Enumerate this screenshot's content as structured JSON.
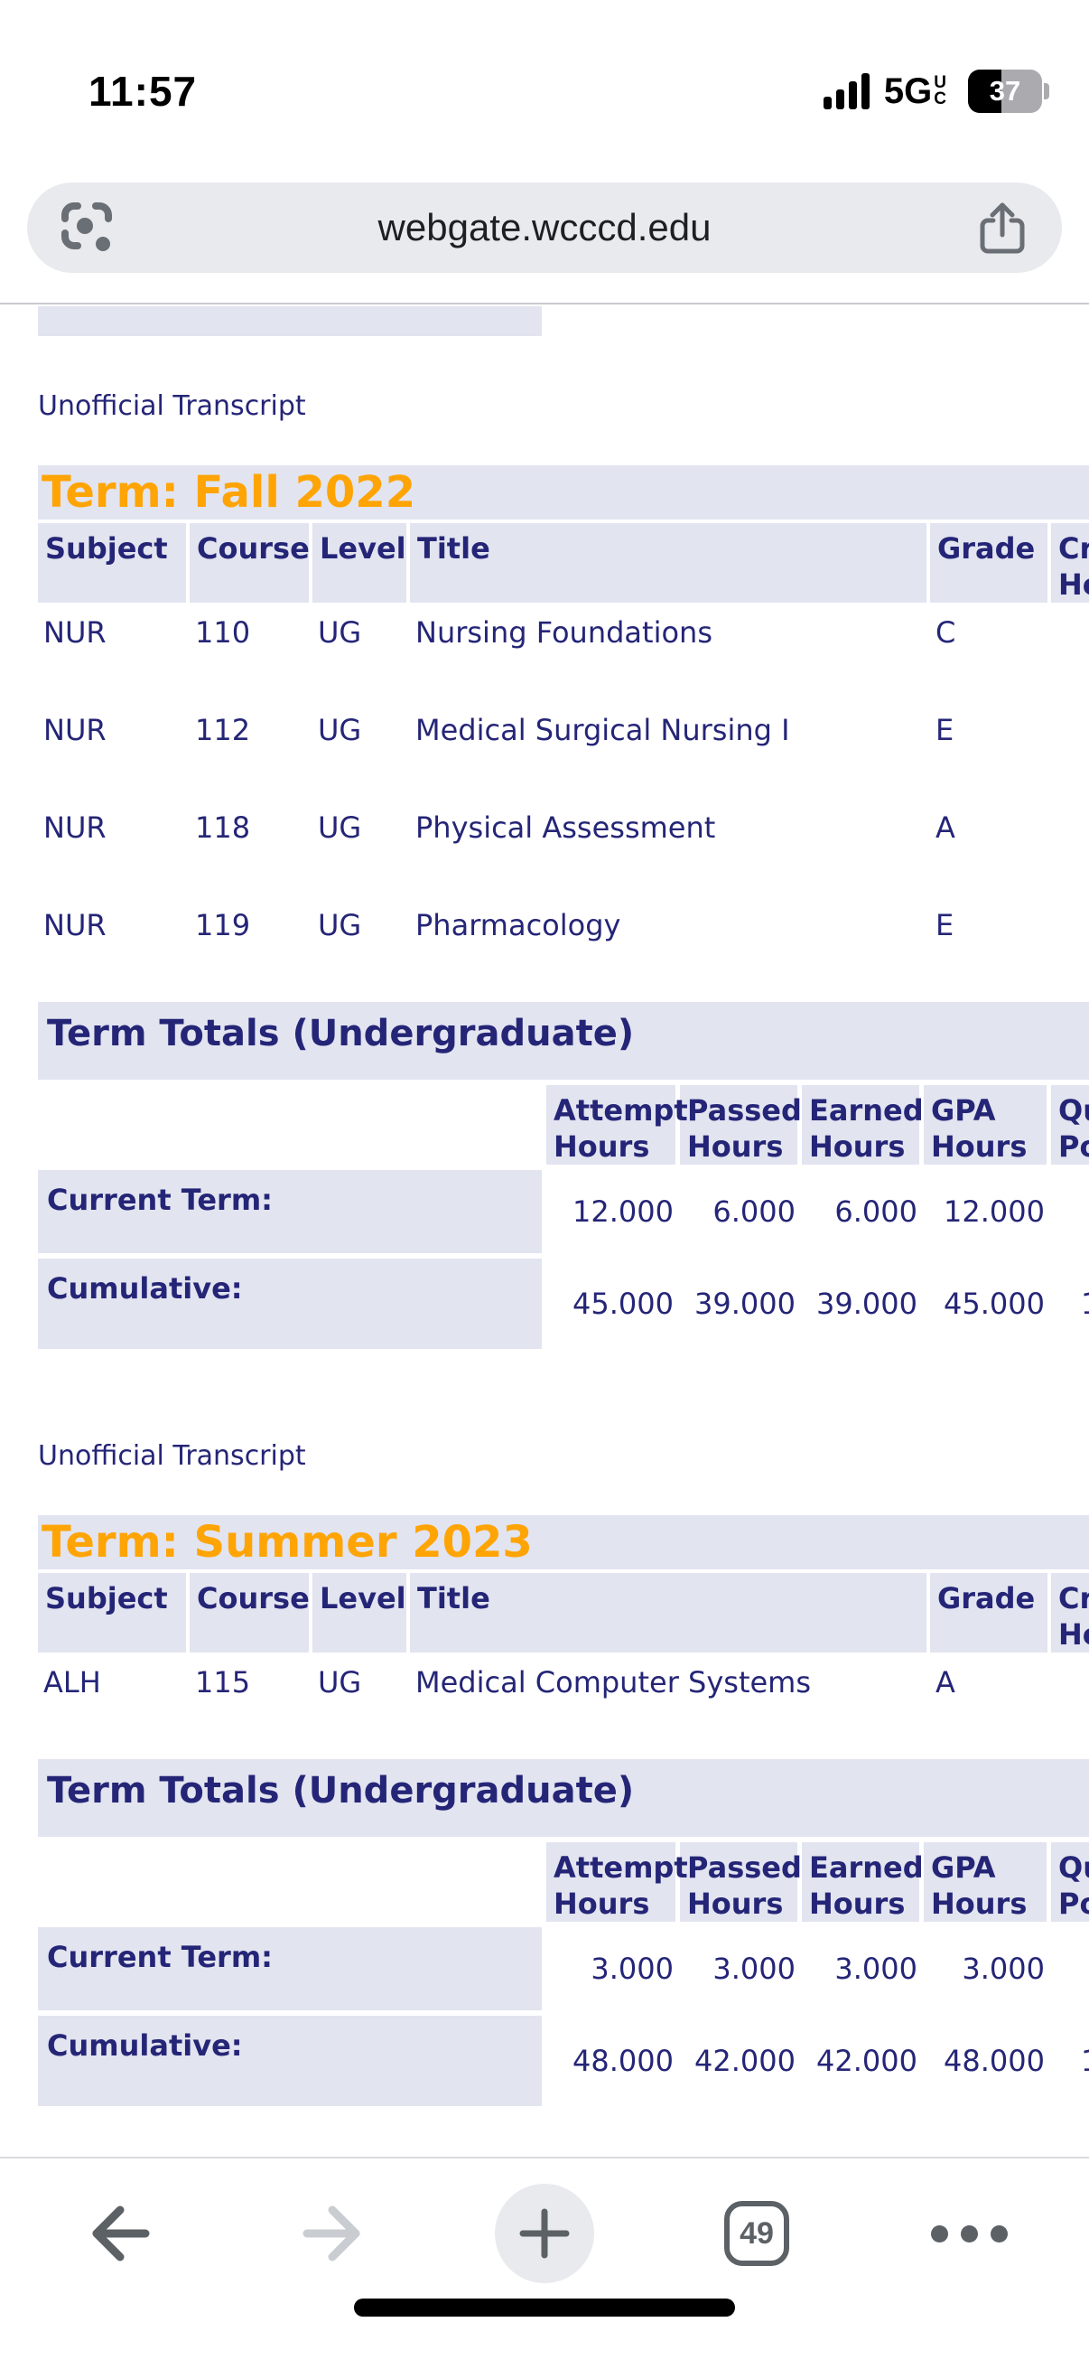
{
  "status_bar": {
    "time": "11:57",
    "signal": "cell-signal-4-bars",
    "network": "5G",
    "network_qualifier_top": "U",
    "network_qualifier_bottom": "C",
    "battery_level": "37"
  },
  "browser": {
    "url": "webgate.wcccd.edu",
    "tab_count": "49"
  },
  "transcript": {
    "link_label": "Unofficial Transcript",
    "course_columns": [
      "Subject",
      "Course",
      "Level",
      "Title",
      "Grade",
      "Credit Hours"
    ],
    "totals_columns": [
      "Attempt Hours",
      "Passed Hours",
      "Earned Hours",
      "GPA Hours",
      "Quality Points"
    ],
    "sections": [
      {
        "term_title": "Term: Fall 2022",
        "courses": [
          {
            "subject": "NUR",
            "course": "110",
            "level": "UG",
            "title": "Nursing Foundations",
            "grade": "C",
            "credit_hours": ""
          },
          {
            "subject": "NUR",
            "course": "112",
            "level": "UG",
            "title": "Medical Surgical Nursing I",
            "grade": "E",
            "credit_hours": ""
          },
          {
            "subject": "NUR",
            "course": "118",
            "level": "UG",
            "title": "Physical Assessment",
            "grade": "A",
            "credit_hours": ""
          },
          {
            "subject": "NUR",
            "course": "119",
            "level": "UG",
            "title": "Pharmacology",
            "grade": "E",
            "credit_hours": ""
          }
        ],
        "totals_title": "Term Totals (Undergraduate)",
        "totals_rows": [
          {
            "label": "Current Term:",
            "attempt_hours": "12.000",
            "passed_hours": "6.000",
            "earned_hours": "6.000",
            "gpa_hours": "12.000",
            "quality_points": ""
          },
          {
            "label": "Cumulative:",
            "attempt_hours": "45.000",
            "passed_hours": "39.000",
            "earned_hours": "39.000",
            "gpa_hours": "45.000",
            "quality_points": "1"
          }
        ]
      },
      {
        "term_title": "Term: Summer 2023",
        "courses": [
          {
            "subject": "ALH",
            "course": "115",
            "level": "UG",
            "title": "Medical Computer Systems",
            "grade": "A",
            "credit_hours": ""
          }
        ],
        "totals_title": "Term Totals (Undergraduate)",
        "totals_rows": [
          {
            "label": "Current Term:",
            "attempt_hours": "3.000",
            "passed_hours": "3.000",
            "earned_hours": "3.000",
            "gpa_hours": "3.000",
            "quality_points": ""
          },
          {
            "label": "Cumulative:",
            "attempt_hours": "48.000",
            "passed_hours": "42.000",
            "earned_hours": "42.000",
            "gpa_hours": "48.000",
            "quality_points": "1"
          }
        ]
      }
    ]
  },
  "colors": {
    "navy_text": "#252577",
    "term_orange": "#ffa405",
    "cell_lavender": "#e2e4f0",
    "chrome_icon_gray": "#5c6166",
    "disabled_icon_gray": "#c9ccd0"
  }
}
